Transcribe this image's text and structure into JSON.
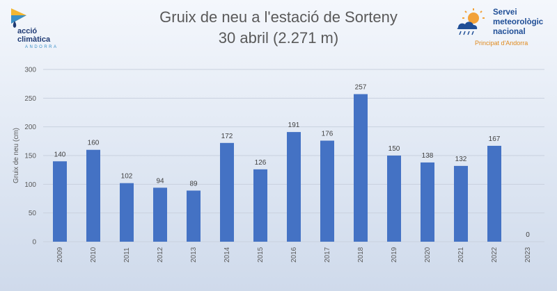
{
  "branding": {
    "left_logo": {
      "line1": "acció",
      "line2": "climàtica",
      "line3": "ANDORRA"
    },
    "right_logo": {
      "line1": "Servei",
      "line2": "meteorològic",
      "line3": "nacional",
      "line4": "Principat d'Andorra"
    }
  },
  "colors": {
    "bar": "#4472c4",
    "grid": "#c9d1de",
    "text": "#595959",
    "accent_orange": "#f2a23a",
    "accent_blue": "#1f4e96"
  },
  "chart_data": {
    "type": "bar",
    "title": "Gruix de neu a l'estació de Sorteny",
    "subtitle": "30 abril (2.271 m)",
    "xlabel": "",
    "ylabel": "Gruix de neu (cm)",
    "ylim": [
      0,
      300
    ],
    "yticks": [
      0,
      50,
      100,
      150,
      200,
      250,
      300
    ],
    "grid": true,
    "categories": [
      "2009",
      "2010",
      "2011",
      "2012",
      "2013",
      "2014",
      "2015",
      "2016",
      "2017",
      "2018",
      "2019",
      "2020",
      "2021",
      "2022",
      "2023"
    ],
    "values": [
      140,
      160,
      102,
      94,
      89,
      172,
      126,
      191,
      176,
      257,
      150,
      138,
      132,
      167,
      0
    ]
  }
}
